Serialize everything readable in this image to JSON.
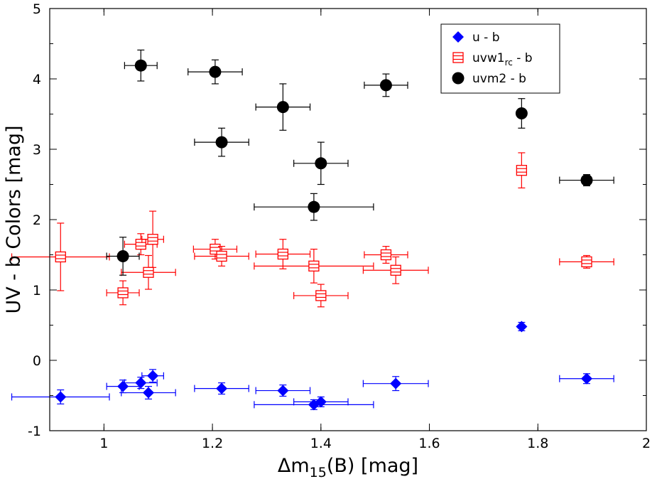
{
  "chart_data": {
    "type": "scatter",
    "title": "",
    "xlabel_main": "Δm",
    "xlabel_sub": "15",
    "xlabel_rest": "(B) [mag]",
    "ylabel": "UV  -  b Colors [mag]",
    "xlim": [
      0.9,
      2.0
    ],
    "ylim": [
      -1,
      5
    ],
    "x_ticks": [
      1,
      1.2,
      1.4,
      1.6,
      1.8,
      2
    ],
    "x_tick_labels": [
      "1",
      "1.2",
      "1.4",
      "1.6",
      "1.8",
      "2"
    ],
    "y_ticks": [
      -1,
      0,
      1,
      2,
      3,
      4,
      5
    ],
    "y_tick_labels": [
      "-1",
      "0",
      "1",
      "2",
      "3",
      "4",
      "5"
    ],
    "legend_position": "top-right",
    "series": [
      {
        "name": "u - b",
        "legend_main": "u - b",
        "legend_sub": "",
        "legend_rest": "",
        "marker": "diamond",
        "color": "#0000ff",
        "points": [
          {
            "x": 0.92,
            "y": -0.52,
            "xerr": 0.09,
            "yerr": 0.1
          },
          {
            "x": 1.035,
            "y": -0.37,
            "xerr": 0.03,
            "yerr": 0.09
          },
          {
            "x": 1.068,
            "y": -0.32,
            "xerr": 0.03,
            "yerr": 0.08
          },
          {
            "x": 1.082,
            "y": -0.46,
            "xerr": 0.05,
            "yerr": 0.09
          },
          {
            "x": 1.09,
            "y": -0.22,
            "xerr": 0.02,
            "yerr": 0.09
          },
          {
            "x": 1.217,
            "y": -0.4,
            "xerr": 0.05,
            "yerr": 0.08
          },
          {
            "x": 1.33,
            "y": -0.43,
            "xerr": 0.05,
            "yerr": 0.08
          },
          {
            "x": 1.387,
            "y": -0.63,
            "xerr": 0.11,
            "yerr": 0.07
          },
          {
            "x": 1.4,
            "y": -0.59,
            "xerr": 0.05,
            "yerr": 0.07
          },
          {
            "x": 1.538,
            "y": -0.33,
            "xerr": 0.06,
            "yerr": 0.1
          },
          {
            "x": 1.77,
            "y": 0.48,
            "xerr": 0.0,
            "yerr": 0.06
          },
          {
            "x": 1.89,
            "y": -0.26,
            "xerr": 0.05,
            "yerr": 0.07
          }
        ]
      },
      {
        "name": "uvw1rc - b",
        "legend_main": "uvw1",
        "legend_sub": "rc",
        "legend_rest": " - b",
        "marker": "square",
        "color": "#ff0000",
        "points": [
          {
            "x": 0.92,
            "y": 1.47,
            "xerr": 0.09,
            "yerr": 0.48
          },
          {
            "x": 1.035,
            "y": 0.96,
            "xerr": 0.03,
            "yerr": 0.17
          },
          {
            "x": 1.068,
            "y": 1.65,
            "xerr": 0.03,
            "yerr": 0.15
          },
          {
            "x": 1.082,
            "y": 1.25,
            "xerr": 0.05,
            "yerr": 0.24
          },
          {
            "x": 1.09,
            "y": 1.72,
            "xerr": 0.02,
            "yerr": 0.4
          },
          {
            "x": 1.205,
            "y": 1.58,
            "xerr": 0.04,
            "yerr": 0.14
          },
          {
            "x": 1.217,
            "y": 1.48,
            "xerr": 0.05,
            "yerr": 0.14
          },
          {
            "x": 1.33,
            "y": 1.51,
            "xerr": 0.05,
            "yerr": 0.21
          },
          {
            "x": 1.387,
            "y": 1.34,
            "xerr": 0.11,
            "yerr": 0.24
          },
          {
            "x": 1.4,
            "y": 0.92,
            "xerr": 0.05,
            "yerr": 0.16
          },
          {
            "x": 1.52,
            "y": 1.5,
            "xerr": 0.04,
            "yerr": 0.12
          },
          {
            "x": 1.538,
            "y": 1.28,
            "xerr": 0.06,
            "yerr": 0.19
          },
          {
            "x": 1.77,
            "y": 2.7,
            "xerr": 0.0,
            "yerr": 0.25
          },
          {
            "x": 1.89,
            "y": 1.4,
            "xerr": 0.05,
            "yerr": 0.09
          }
        ]
      },
      {
        "name": "uvm2 - b",
        "legend_main": "uvm2 - b",
        "legend_sub": "",
        "legend_rest": "",
        "marker": "circle",
        "color": "#000000",
        "points": [
          {
            "x": 1.035,
            "y": 1.48,
            "xerr": 0.03,
            "yerr": 0.27
          },
          {
            "x": 1.068,
            "y": 4.19,
            "xerr": 0.03,
            "yerr": 0.22
          },
          {
            "x": 1.205,
            "y": 4.1,
            "xerr": 0.05,
            "yerr": 0.17
          },
          {
            "x": 1.217,
            "y": 3.1,
            "xerr": 0.05,
            "yerr": 0.2
          },
          {
            "x": 1.33,
            "y": 3.6,
            "xerr": 0.05,
            "yerr": 0.33
          },
          {
            "x": 1.387,
            "y": 2.18,
            "xerr": 0.11,
            "yerr": 0.19
          },
          {
            "x": 1.4,
            "y": 2.8,
            "xerr": 0.05,
            "yerr": 0.3
          },
          {
            "x": 1.52,
            "y": 3.91,
            "xerr": 0.04,
            "yerr": 0.16
          },
          {
            "x": 1.77,
            "y": 3.51,
            "xerr": 0.0,
            "yerr": 0.21
          },
          {
            "x": 1.89,
            "y": 2.56,
            "xerr": 0.05,
            "yerr": 0.08
          }
        ]
      }
    ]
  }
}
